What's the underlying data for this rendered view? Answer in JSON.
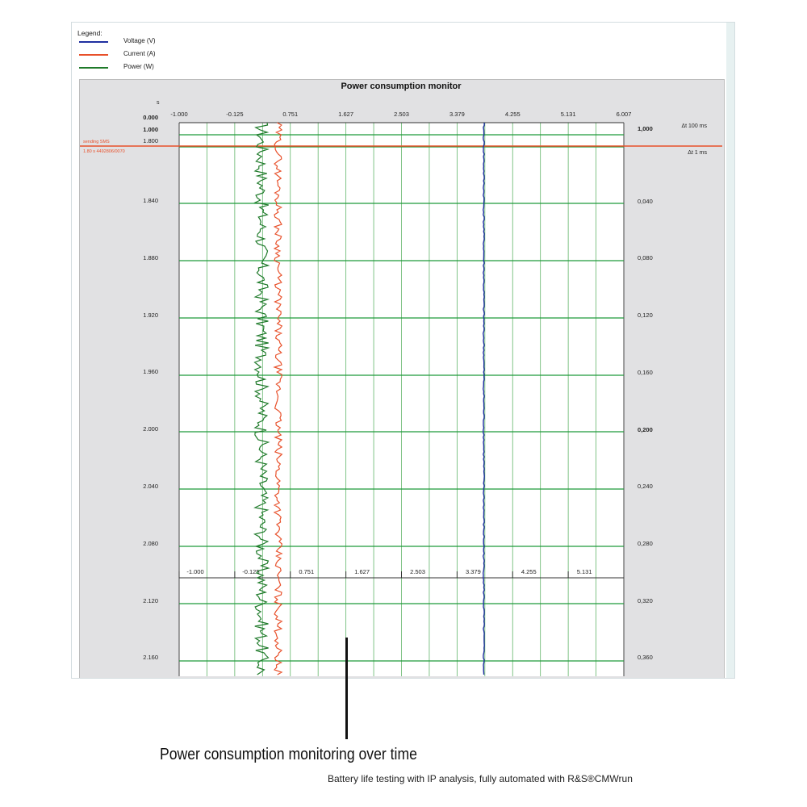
{
  "legend": {
    "title": "Legend:",
    "items": [
      {
        "label": "Voltage (V)",
        "color": "#1f2fa0"
      },
      {
        "label": "Current (A)",
        "color": "#e8502a"
      },
      {
        "label": "Power (W)",
        "color": "#1f7a2a"
      }
    ]
  },
  "chart_data": {
    "type": "line",
    "title": "Power consumption monitor",
    "y_axis_unit": "s",
    "x_ticks": [
      "-1.000",
      "-0.125",
      "0.751",
      "1.627",
      "2.503",
      "3.379",
      "4.255",
      "5.131",
      "6.007"
    ],
    "x_ticks_bottom": [
      "-1.000",
      "-0.125",
      "0.751",
      "1.627",
      "2.503",
      "3.379",
      "4.255",
      "5.131"
    ],
    "y_ticks_left": [
      "0.000",
      "1.000",
      "1.800",
      "1.840",
      "1.880",
      "1.920",
      "1.960",
      "2.000",
      "2.040",
      "2.080",
      "2.120",
      "2.160"
    ],
    "y_ticks_right": [
      "1,000",
      "0,040",
      "0,080",
      "0,120",
      "0,160",
      "0,200",
      "0,240",
      "0,280",
      "0,320",
      "0,360"
    ],
    "annotations": {
      "delta_top": "Δt 100 ms",
      "delta_marker": "Δt 1 ms",
      "marker_label_1": "sending SMS",
      "marker_label_2": "1.80 s 4492806/0070"
    },
    "grid": true,
    "legend_position": "top-left",
    "series": [
      {
        "name": "Voltage (V)",
        "color": "#1f2fa0",
        "approx_value": 3.8
      },
      {
        "name": "Current (A)",
        "color": "#e8502a",
        "approx_value": 0.55
      },
      {
        "name": "Power (W)",
        "color": "#1f7a2a",
        "approx_value": 0.3
      }
    ]
  },
  "caption": "Power consumption monitoring over time",
  "subcaption": "Battery life testing with IP analysis, fully automated with R&S®CMWrun"
}
